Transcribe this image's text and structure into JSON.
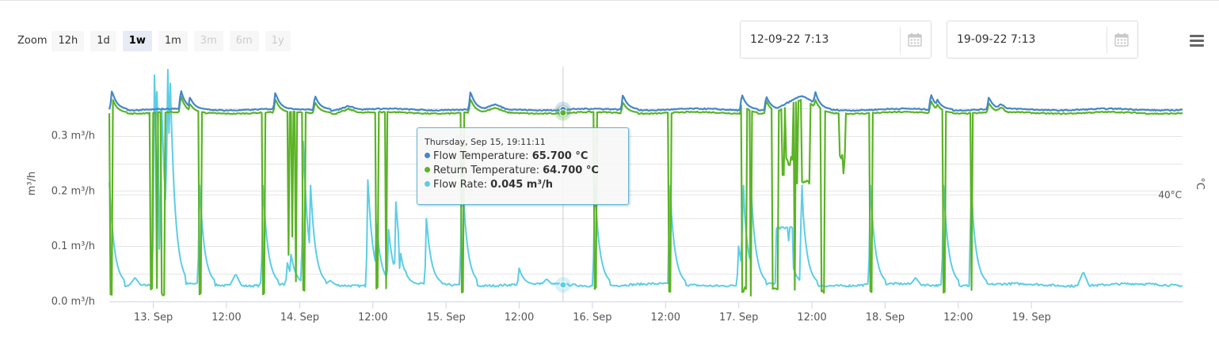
{
  "zoom": {
    "label": "Zoom",
    "buttons": [
      {
        "label": "12h",
        "state": "normal"
      },
      {
        "label": "1d",
        "state": "normal"
      },
      {
        "label": "1w",
        "state": "active"
      },
      {
        "label": "1m",
        "state": "normal"
      },
      {
        "label": "3m",
        "state": "disabled"
      },
      {
        "label": "6m",
        "state": "disabled"
      },
      {
        "label": "1y",
        "state": "disabled"
      }
    ]
  },
  "range": {
    "from": "12-09-22 7:13",
    "to": "19-09-22 7:13",
    "calendar_icon": "calendar-icon"
  },
  "menu_icon": "hamburger-menu-icon",
  "chart_data": {
    "type": "line",
    "x_unit": "hours since Sep 13 00:00",
    "xlim": [
      -7.22,
      168.78
    ],
    "x_ticks": [
      {
        "x": -12,
        "label": "12:00"
      },
      {
        "x": 0,
        "label": "13. Sep"
      },
      {
        "x": 12,
        "label": "12:00"
      },
      {
        "x": 24,
        "label": "14. Sep"
      },
      {
        "x": 36,
        "label": "12:00"
      },
      {
        "x": 48,
        "label": "15. Sep"
      },
      {
        "x": 60,
        "label": "12:00"
      },
      {
        "x": 72,
        "label": "16. Sep"
      },
      {
        "x": 84,
        "label": "12:00"
      },
      {
        "x": 96,
        "label": "17. Sep"
      },
      {
        "x": 108,
        "label": "12:00"
      },
      {
        "x": 120,
        "label": "18. Sep"
      },
      {
        "x": 132,
        "label": "12:00"
      },
      {
        "x": 144,
        "label": "19. Sep"
      }
    ],
    "y_left": {
      "label": "m³/h",
      "ylim": [
        0,
        0.42
      ],
      "ticks": [
        {
          "v": 0.0,
          "label": "0.0 m³/h"
        },
        {
          "v": 0.1,
          "label": "0.1 m³/h"
        },
        {
          "v": 0.2,
          "label": "0.2 m³/h"
        },
        {
          "v": 0.3,
          "label": "0.3 m³/h"
        }
      ]
    },
    "y_right": {
      "label": "°C",
      "ylim": [
        8,
        77.7
      ],
      "ticks": [
        {
          "v": 40,
          "label": "40°C"
        }
      ]
    },
    "grid": true,
    "series": [
      {
        "name": "Flow Temperature",
        "unit": "°C",
        "color": "#4287c8",
        "axis": "right",
        "base": 65.7,
        "spikes": [
          {
            "x": -6.8,
            "v": 71.5
          },
          {
            "x": 4.5,
            "v": 71.8
          },
          {
            "x": 6.0,
            "v": 69.5
          },
          {
            "x": 20.0,
            "v": 71.0
          },
          {
            "x": 26.5,
            "v": 70.0
          },
          {
            "x": 52.0,
            "v": 71.2
          },
          {
            "x": 77.0,
            "v": 70.2
          },
          {
            "x": 96.5,
            "v": 70.4
          },
          {
            "x": 100.5,
            "v": 69.8
          },
          {
            "x": 108.5,
            "v": 71.5
          },
          {
            "x": 127.5,
            "v": 70.5
          },
          {
            "x": 128.5,
            "v": 69.0
          },
          {
            "x": 137.0,
            "v": 69.5
          }
        ],
        "humps": [
          {
            "from": 102.0,
            "to": 110.5,
            "v": 69.6
          },
          {
            "from": 54.0,
            "to": 58.0,
            "v": 67.0
          },
          {
            "from": 138.0,
            "to": 140.0,
            "v": 67.2
          },
          {
            "from": 30.0,
            "to": 34.0,
            "v": 67.0
          }
        ]
      },
      {
        "name": "Return Temperature",
        "unit": "°C",
        "color": "#5bb326",
        "axis": "right",
        "base": 64.7,
        "spikes": [
          {
            "x": -6.8,
            "v": 69.5
          },
          {
            "x": 4.5,
            "v": 70.0
          },
          {
            "x": 6.0,
            "v": 67.5
          },
          {
            "x": 20.0,
            "v": 69.0
          },
          {
            "x": 26.5,
            "v": 68.0
          },
          {
            "x": 52.0,
            "v": 69.0
          },
          {
            "x": 77.0,
            "v": 68.0
          },
          {
            "x": 96.5,
            "v": 68.5
          },
          {
            "x": 100.5,
            "v": 68.5
          },
          {
            "x": 108.5,
            "v": 69.0
          },
          {
            "x": 127.5,
            "v": 68.5
          },
          {
            "x": 128.5,
            "v": 67.5
          },
          {
            "x": 137.0,
            "v": 67.8
          }
        ],
        "humps": [
          {
            "from": 102.0,
            "to": 110.5,
            "v": 68.5
          },
          {
            "from": 54.0,
            "to": 58.0,
            "v": 66.0
          },
          {
            "from": 138.0,
            "to": 140.0,
            "v": 66.2
          },
          {
            "from": 30.0,
            "to": 34.0,
            "v": 66.0
          }
        ],
        "drops": [
          {
            "x": -7.1,
            "w": 0.35,
            "v": 10.0
          },
          {
            "x": -0.5,
            "w": 0.35,
            "v": 11.5
          },
          {
            "x": 0.4,
            "w": 0.35,
            "v": 12.0
          },
          {
            "x": 1.3,
            "w": 0.5,
            "v": 10.0
          },
          {
            "x": 7.5,
            "w": 0.35,
            "v": 10.5
          },
          {
            "x": 17.9,
            "w": 0.35,
            "v": 10.0
          },
          {
            "x": 22.0,
            "w": 0.3,
            "v": 22.0
          },
          {
            "x": 22.6,
            "w": 0.3,
            "v": 28.0
          },
          {
            "x": 23.2,
            "w": 0.3,
            "v": 14.0
          },
          {
            "x": 24.5,
            "w": 0.35,
            "v": 11.0
          },
          {
            "x": 36.5,
            "w": 0.3,
            "v": 12.0
          },
          {
            "x": 38.0,
            "w": 0.3,
            "v": 12.0
          },
          {
            "x": 50.5,
            "w": 0.35,
            "v": 11.0
          },
          {
            "x": 72.3,
            "w": 0.3,
            "v": 12.0
          },
          {
            "x": 84.5,
            "w": 0.35,
            "v": 11.0
          },
          {
            "x": 96.5,
            "w": 0.4,
            "v": 10.5
          },
          {
            "x": 96.8,
            "w": 0.4,
            "v": 12.0
          },
          {
            "x": 97.8,
            "w": 0.3,
            "v": 10.0
          },
          {
            "x": 101.5,
            "w": 1.0,
            "v": 11.5
          },
          {
            "x": 105.0,
            "w": 0.2,
            "v": 11.0
          },
          {
            "x": 109.5,
            "w": 0.5,
            "v": 11.0
          },
          {
            "x": 117.5,
            "w": 0.4,
            "v": 11.0
          },
          {
            "x": 129.5,
            "w": 0.35,
            "v": 11.0
          },
          {
            "x": 134.0,
            "w": 0.35,
            "v": 11.0
          }
        ],
        "segments": [
          {
            "from": 103.6,
            "to": 104.9,
            "v": 51.0
          },
          {
            "from": 106.2,
            "to": 107.6,
            "v": 44.0
          },
          {
            "from": 112.5,
            "to": 113.4,
            "v": 51.5
          }
        ],
        "dips": [
          {
            "x": 105.6,
            "v": 43.5
          },
          {
            "x": 103.3,
            "v": 46.0
          },
          {
            "x": 104.3,
            "v": 49.0
          },
          {
            "x": 113.2,
            "v": 46.5
          },
          {
            "x": 106.5,
            "v": 49.0
          }
        ]
      },
      {
        "name": "Flow Rate",
        "unit": "m³/h",
        "color": "#5ccde6",
        "axis": "left",
        "base": 0.03,
        "spikes": [
          {
            "x": -7.2,
            "v": 0.215
          },
          {
            "x": 0.2,
            "v": 0.41
          },
          {
            "x": 0.6,
            "v": 0.38
          },
          {
            "x": 1.4,
            "v": 0.35
          },
          {
            "x": 2.3,
            "v": 0.42
          },
          {
            "x": 2.8,
            "v": 0.395
          },
          {
            "x": 1.0,
            "v": 0.095
          },
          {
            "x": 7.6,
            "v": 0.21
          },
          {
            "x": 18.0,
            "v": 0.21
          },
          {
            "x": 22.0,
            "v": 0.07
          },
          {
            "x": 22.6,
            "v": 0.085
          },
          {
            "x": 24.6,
            "v": 0.29
          },
          {
            "x": 25.8,
            "v": 0.21
          },
          {
            "x": 35.2,
            "v": 0.22
          },
          {
            "x": 36.6,
            "v": 0.14
          },
          {
            "x": 38.6,
            "v": 0.13
          },
          {
            "x": 39.8,
            "v": 0.18
          },
          {
            "x": 40.3,
            "v": 0.06
          },
          {
            "x": 41.3,
            "v": 0.055
          },
          {
            "x": 44.8,
            "v": 0.15
          },
          {
            "x": 50.6,
            "v": 0.25
          },
          {
            "x": 60.0,
            "v": 0.06
          },
          {
            "x": 72.4,
            "v": 0.21
          },
          {
            "x": 84.7,
            "v": 0.21
          },
          {
            "x": 96.0,
            "v": 0.1
          },
          {
            "x": 96.7,
            "v": 0.21
          },
          {
            "x": 98.0,
            "v": 0.21
          },
          {
            "x": 104.2,
            "v": 0.11
          },
          {
            "x": 106.3,
            "v": 0.21
          },
          {
            "x": 117.6,
            "v": 0.21
          },
          {
            "x": 129.6,
            "v": 0.21
          },
          {
            "x": 134.1,
            "v": 0.21
          }
        ],
        "plateaus": [
          {
            "from": 102.0,
            "to": 104.8,
            "v": 0.133
          }
        ],
        "bumps": [
          {
            "x": 3.5,
            "v": 0.055
          },
          {
            "x": 13.5,
            "v": 0.05
          },
          {
            "x": 18.3,
            "v": 0.045
          },
          {
            "x": 125.0,
            "v": 0.043
          },
          {
            "x": 152.5,
            "v": 0.054
          },
          {
            "x": -3.0,
            "v": 0.043
          },
          {
            "x": 29.0,
            "v": 0.038
          },
          {
            "x": 64.5,
            "v": 0.041
          }
        ]
      }
    ],
    "tooltip": {
      "x": 67.19,
      "header": "Thursday, Sep 15, 19:11:11",
      "rows": [
        {
          "series": "Flow Temperature",
          "label": "Flow Temperature:",
          "value": "65.700 °C",
          "color": "#4287c8"
        },
        {
          "series": "Return Temperature",
          "label": "Return Temperature:",
          "value": "64.700 °C",
          "color": "#5bb326"
        },
        {
          "series": "Flow Rate",
          "label": "Flow Rate:",
          "value": "0.045 m³/h",
          "color": "#5ccde6"
        }
      ]
    }
  }
}
